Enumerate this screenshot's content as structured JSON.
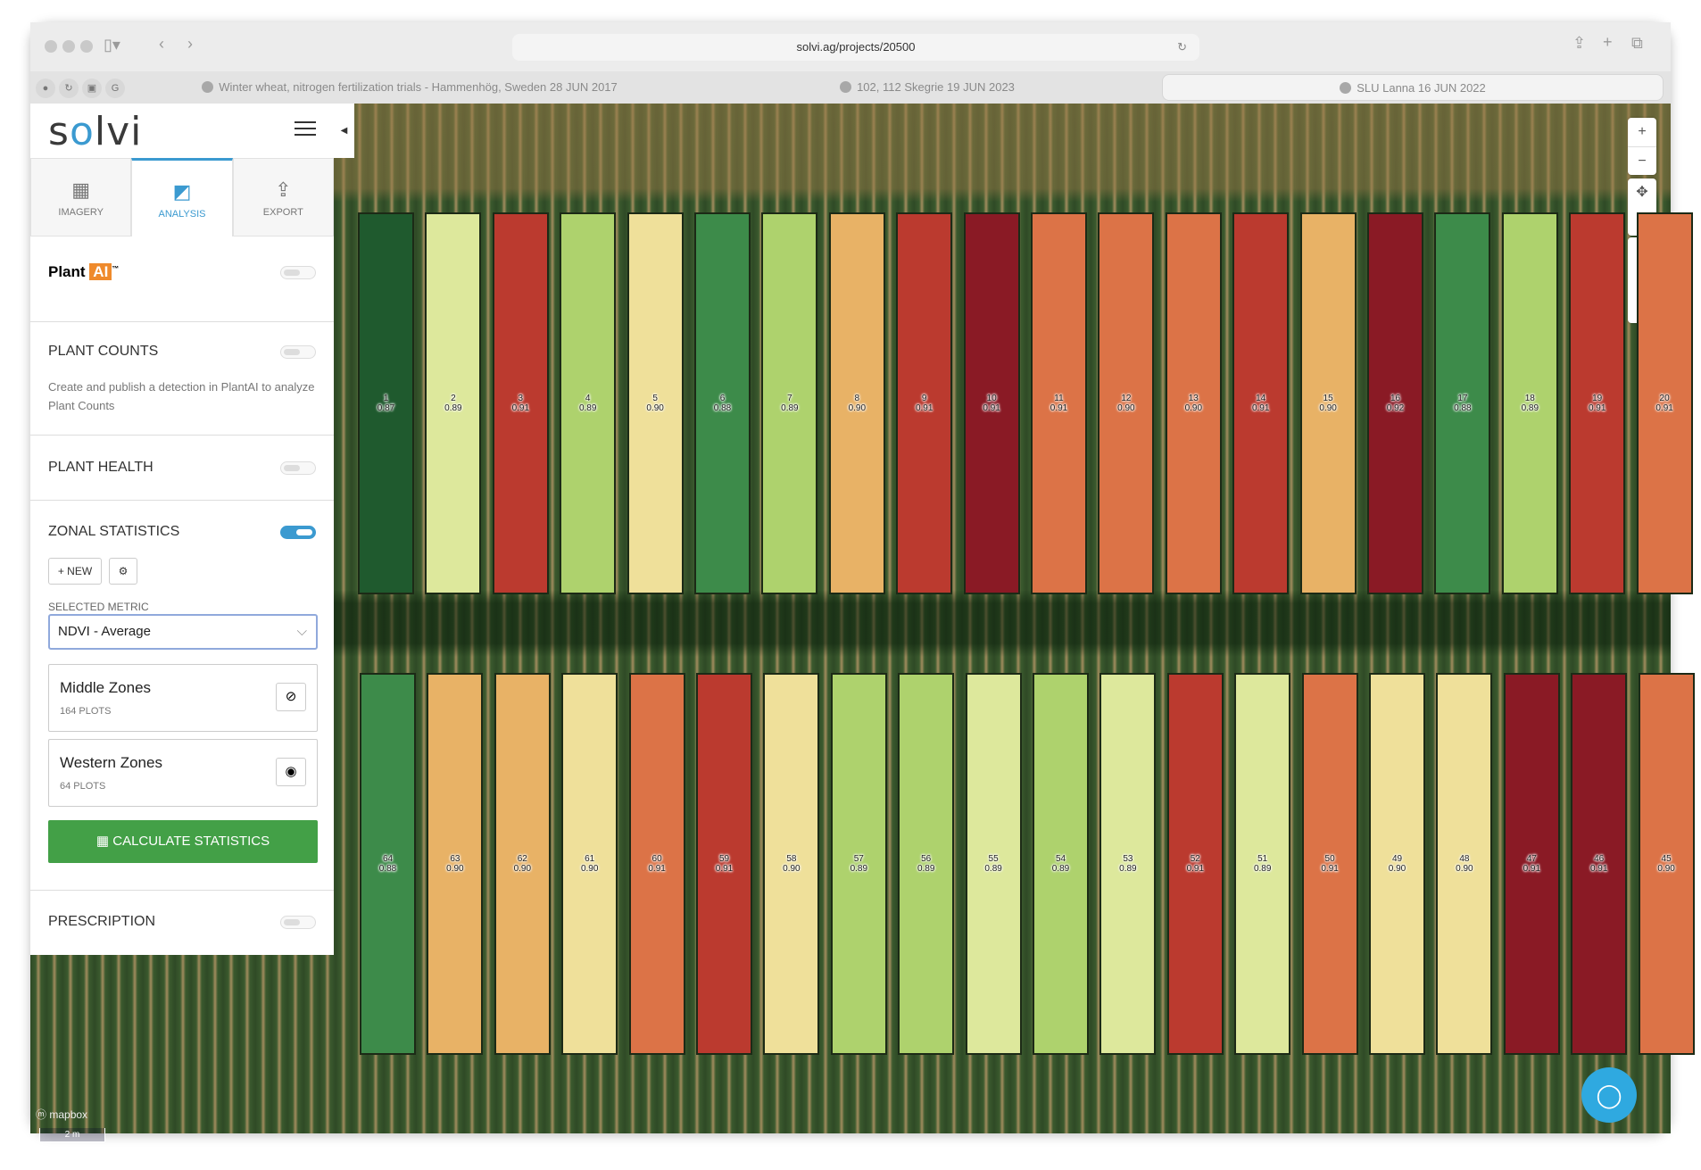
{
  "browser": {
    "url": "solvi.ag/projects/20500",
    "tabs": [
      {
        "label": "Winter wheat, nitrogen fertilization trials - Hammenhög, Sweden 28 JUN 2017",
        "active": false
      },
      {
        "label": "102, 112 Skegrie 19 JUN 2023",
        "active": false
      },
      {
        "label": "SLU Lanna 16 JUN 2022",
        "active": true
      }
    ]
  },
  "app": {
    "logo": "solvi",
    "tabs": [
      {
        "label": "IMAGERY",
        "icon": "solar-grid-icon"
      },
      {
        "label": "ANALYSIS",
        "icon": "analysis-icon",
        "active": true
      },
      {
        "label": "EXPORT",
        "icon": "export-icon"
      }
    ],
    "plantai": {
      "label_plant": "Plant",
      "label_ai": "AI",
      "tm": "™",
      "enabled": false
    },
    "plant_counts": {
      "title": "PLANT COUNTS",
      "enabled": false,
      "description": "Create and publish a detection in PlantAI to analyze Plant Counts"
    },
    "plant_health": {
      "title": "PLANT HEALTH",
      "enabled": false
    },
    "zonal_statistics": {
      "title": "ZONAL STATISTICS",
      "enabled": true,
      "new_label": "+ NEW",
      "metric_label": "SELECTED METRIC",
      "metric_value": "NDVI - Average",
      "zones": [
        {
          "name": "Middle Zones",
          "count": "164 PLOTS",
          "visible": false
        },
        {
          "name": "Western Zones",
          "count": "64 PLOTS",
          "visible": true
        }
      ],
      "calculate_label": "CALCULATE STATISTICS"
    },
    "prescription": {
      "title": "PRESCRIPTION",
      "enabled": false
    }
  },
  "map": {
    "attribution": "mapbox",
    "scale": "2 m",
    "colors": {
      "dkgreen": "#1f5a2e",
      "green": "#3d8b4a",
      "lgreen": "#aed26d",
      "paleyg": "#dde89c",
      "paley": "#efe09a",
      "lorange": "#e8b266",
      "orange": "#dc7347",
      "red": "#bb3a2f",
      "dkred": "#8a1a25"
    },
    "top_row": [
      {
        "id": "1",
        "v": "0.87",
        "c": "dkgreen"
      },
      {
        "id": "2",
        "v": "0.89",
        "c": "paleyg"
      },
      {
        "id": "3",
        "v": "0.91",
        "c": "red"
      },
      {
        "id": "4",
        "v": "0.89",
        "c": "lgreen"
      },
      {
        "id": "5",
        "v": "0.90",
        "c": "paley"
      },
      {
        "id": "6",
        "v": "0.88",
        "c": "green"
      },
      {
        "id": "7",
        "v": "0.89",
        "c": "lgreen"
      },
      {
        "id": "8",
        "v": "0.90",
        "c": "lorange"
      },
      {
        "id": "9",
        "v": "0.91",
        "c": "red"
      },
      {
        "id": "10",
        "v": "0.91",
        "c": "dkred"
      },
      {
        "id": "11",
        "v": "0.91",
        "c": "orange"
      },
      {
        "id": "12",
        "v": "0.90",
        "c": "orange"
      },
      {
        "id": "13",
        "v": "0.90",
        "c": "orange"
      },
      {
        "id": "14",
        "v": "0.91",
        "c": "red"
      },
      {
        "id": "15",
        "v": "0.90",
        "c": "lorange"
      },
      {
        "id": "16",
        "v": "0.92",
        "c": "dkred"
      },
      {
        "id": "17",
        "v": "0.88",
        "c": "green"
      },
      {
        "id": "18",
        "v": "0.89",
        "c": "lgreen"
      },
      {
        "id": "19",
        "v": "0.91",
        "c": "red"
      },
      {
        "id": "20",
        "v": "0.91",
        "c": "orange"
      }
    ],
    "bottom_row": [
      {
        "id": "64",
        "v": "0.88",
        "c": "green"
      },
      {
        "id": "63",
        "v": "0.90",
        "c": "lorange"
      },
      {
        "id": "62",
        "v": "0.90",
        "c": "lorange"
      },
      {
        "id": "61",
        "v": "0.90",
        "c": "paley"
      },
      {
        "id": "60",
        "v": "0.91",
        "c": "orange"
      },
      {
        "id": "59",
        "v": "0.91",
        "c": "red"
      },
      {
        "id": "58",
        "v": "0.90",
        "c": "paley"
      },
      {
        "id": "57",
        "v": "0.89",
        "c": "lgreen"
      },
      {
        "id": "56",
        "v": "0.89",
        "c": "lgreen"
      },
      {
        "id": "55",
        "v": "0.89",
        "c": "paleyg"
      },
      {
        "id": "54",
        "v": "0.89",
        "c": "lgreen"
      },
      {
        "id": "53",
        "v": "0.89",
        "c": "paleyg"
      },
      {
        "id": "52",
        "v": "0.91",
        "c": "red"
      },
      {
        "id": "51",
        "v": "0.89",
        "c": "paleyg"
      },
      {
        "id": "50",
        "v": "0.91",
        "c": "orange"
      },
      {
        "id": "49",
        "v": "0.90",
        "c": "paley"
      },
      {
        "id": "48",
        "v": "0.90",
        "c": "paley"
      },
      {
        "id": "47",
        "v": "0.91",
        "c": "dkred"
      },
      {
        "id": "46",
        "v": "0.91",
        "c": "dkred"
      },
      {
        "id": "45",
        "v": "0.90",
        "c": "orange"
      }
    ]
  }
}
